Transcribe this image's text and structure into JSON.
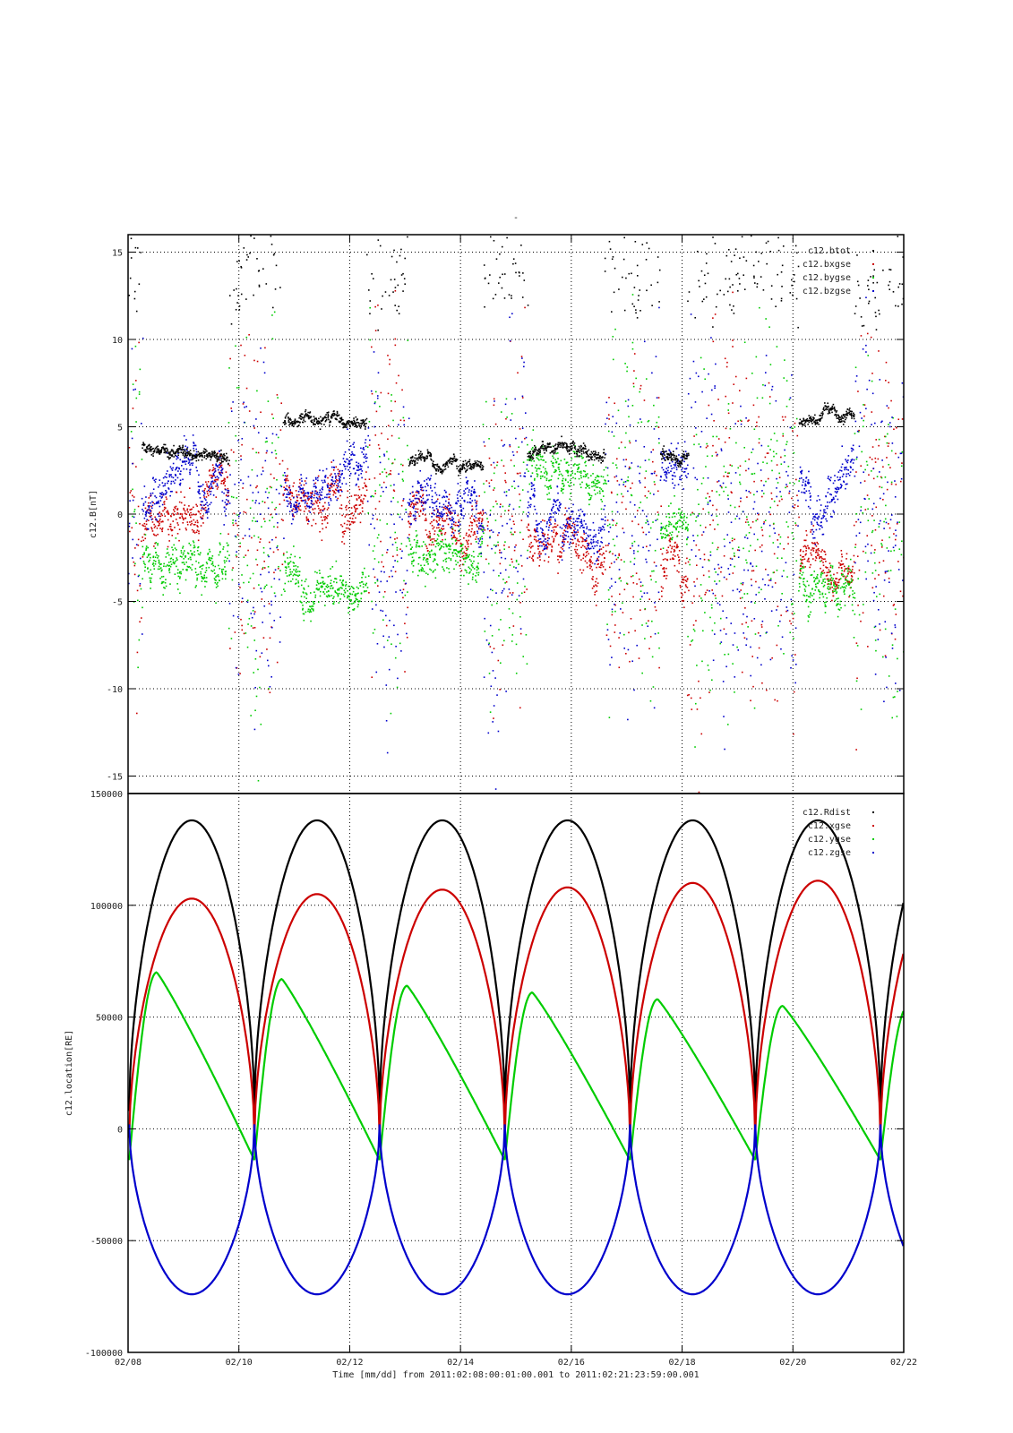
{
  "chart_data": [
    {
      "type": "scatter",
      "title": "-",
      "ylabel": "c12.B[nT]",
      "xlim_days": [
        0,
        14
      ],
      "ylim": [
        -16,
        16
      ],
      "yticks": [
        -15,
        -10,
        -5,
        0,
        5,
        10,
        15
      ],
      "legend_position": "top-right",
      "series": [
        {
          "name": "c12.btot",
          "color": "#000000"
        },
        {
          "name": "c12.bxgse",
          "color": "#cc0000"
        },
        {
          "name": "c12.bygse",
          "color": "#00cc00"
        },
        {
          "name": "c12.bzgse",
          "color": "#0000cc"
        }
      ],
      "segments": [
        {
          "t": [
            0.25,
            1.8
          ],
          "btot": 3.7,
          "bx": 0.5,
          "by": -2.8,
          "bz": 1.0
        },
        {
          "t": [
            2.8,
            4.3
          ],
          "btot": 5.6,
          "bx": 1.5,
          "by": -4.5,
          "bz": 1.8
        },
        {
          "t": [
            5.05,
            6.4
          ],
          "btot": 2.7,
          "bx": -0.5,
          "by": -1.8,
          "bz": 1.0
        },
        {
          "t": [
            7.2,
            8.6
          ],
          "btot": 3.6,
          "bx": -2.5,
          "by": 3.5,
          "bz": -1.0
        },
        {
          "t": [
            9.6,
            10.1
          ],
          "btot": 3.5,
          "bx": -2.0,
          "by": -0.5,
          "bz": 2.0
        },
        {
          "t": [
            12.1,
            13.1
          ],
          "btot": 5.8,
          "bx": -2.5,
          "by": -4.0,
          "bz": 1.5
        }
      ]
    },
    {
      "type": "line",
      "ylabel": "c12.location[RE]",
      "xlabel": "Time [mm/dd]  from 2011:02:08:00:01:00.001  to  2011:02:21:23:59:00.001",
      "xticks": [
        "02/08",
        "02/10",
        "02/12",
        "02/14",
        "02/16",
        "02/18",
        "02/20",
        "02/22"
      ],
      "xlim_days": [
        0,
        14
      ],
      "ylim": [
        -100000,
        150000
      ],
      "yticks": [
        -100000,
        -50000,
        0,
        50000,
        100000,
        150000
      ],
      "legend_position": "top-right",
      "orbit_period_days": 2.26,
      "perigee_days": [
        0.02,
        2.28,
        4.54,
        6.8,
        9.06,
        11.32,
        13.58
      ],
      "series": [
        {
          "name": "c12.Rdist",
          "color": "#000000",
          "peaks": [
            138000,
            138000,
            138000,
            138000,
            138000,
            138000
          ],
          "min": 8000
        },
        {
          "name": "c12.xgse",
          "color": "#cc0000",
          "peaks": [
            103000,
            105000,
            107000,
            108000,
            110000,
            111000
          ],
          "min": -4000
        },
        {
          "name": "c12.ygse",
          "color": "#00cc00",
          "peaks": [
            70000,
            67000,
            64000,
            61000,
            58000,
            55000
          ],
          "min": -14000
        },
        {
          "name": "c12.zgse",
          "color": "#0000cc",
          "peaks": [
            -74000,
            -74000,
            -74000,
            -74000,
            -74000,
            -74000
          ],
          "min": 2000
        }
      ]
    }
  ]
}
